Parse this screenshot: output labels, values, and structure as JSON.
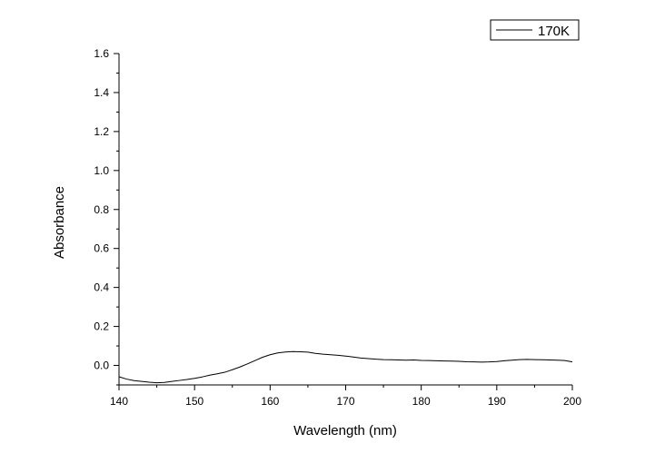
{
  "chart_data": {
    "type": "line",
    "title": "",
    "xlabel": "Wavelength (nm)",
    "ylabel": "Absorbance",
    "xlim": [
      140,
      200
    ],
    "ylim": [
      -0.1,
      1.6
    ],
    "xticks": [
      140,
      150,
      160,
      170,
      180,
      190,
      200
    ],
    "xtick_labels": [
      "140",
      "150",
      "160",
      "170",
      "180",
      "190",
      "200"
    ],
    "yticks": [
      0.0,
      0.2,
      0.4,
      0.6,
      0.8,
      1.0,
      1.2,
      1.4,
      1.6
    ],
    "ytick_labels": [
      "0.0",
      "0.2",
      "0.4",
      "0.6",
      "0.8",
      "1.0",
      "1.2",
      "1.4",
      "1.6"
    ],
    "grid": false,
    "legend_position": "top-right",
    "colors": {
      "line": "#000000",
      "axis": "#000000",
      "background": "#ffffff"
    },
    "series": [
      {
        "name": "170K",
        "x": [
          140,
          141,
          142,
          143,
          144,
          145,
          146,
          147,
          148,
          149,
          150,
          151,
          152,
          153,
          154,
          155,
          156,
          157,
          158,
          159,
          160,
          161,
          162,
          163,
          164,
          165,
          166,
          167,
          168,
          169,
          170,
          171,
          172,
          173,
          174,
          175,
          176,
          177,
          178,
          179,
          180,
          181,
          182,
          183,
          184,
          185,
          186,
          187,
          188,
          189,
          190,
          191,
          192,
          193,
          194,
          195,
          196,
          197,
          198,
          199,
          200
        ],
        "y": [
          -0.058,
          -0.07,
          -0.078,
          -0.082,
          -0.086,
          -0.089,
          -0.087,
          -0.082,
          -0.077,
          -0.072,
          -0.066,
          -0.059,
          -0.05,
          -0.043,
          -0.035,
          -0.022,
          -0.008,
          0.008,
          0.025,
          0.042,
          0.055,
          0.064,
          0.069,
          0.071,
          0.07,
          0.068,
          0.062,
          0.058,
          0.055,
          0.052,
          0.048,
          0.043,
          0.038,
          0.035,
          0.032,
          0.03,
          0.029,
          0.028,
          0.027,
          0.028,
          0.026,
          0.025,
          0.024,
          0.023,
          0.022,
          0.021,
          0.019,
          0.018,
          0.017,
          0.018,
          0.02,
          0.024,
          0.027,
          0.03,
          0.031,
          0.03,
          0.029,
          0.028,
          0.027,
          0.025,
          0.018
        ]
      }
    ]
  }
}
